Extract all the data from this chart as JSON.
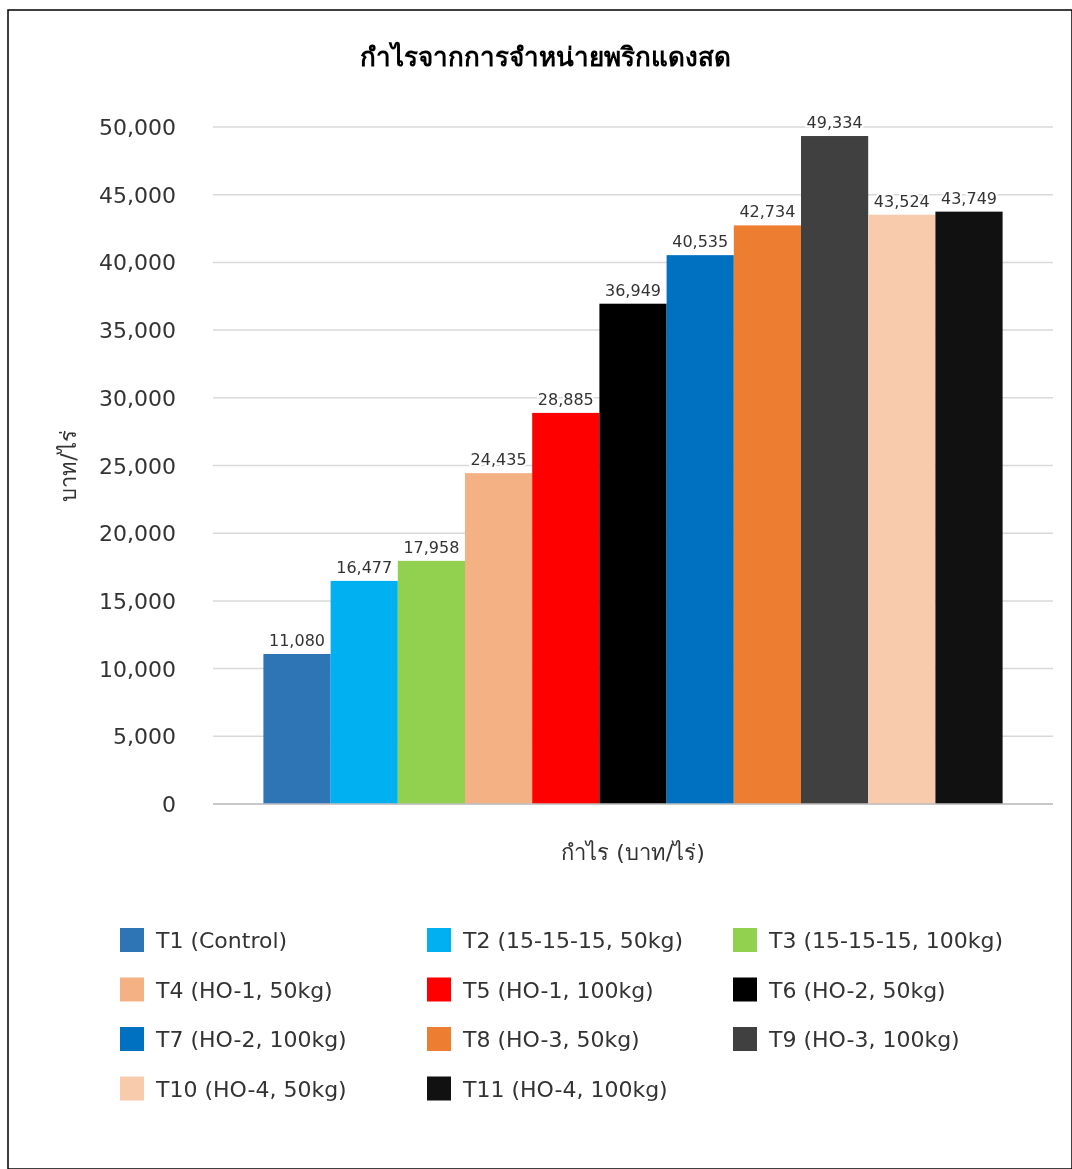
{
  "chart_data": {
    "type": "bar",
    "title": "กำไรจากการจำหน่ายพริกแดงสด",
    "ylabel": "บาท/ไร่",
    "categories": [
      "กำไร (บาท/ไร่)"
    ],
    "series": [
      {
        "name": "T1 (Control)",
        "color": "#2e75b6",
        "values": [
          11080
        ],
        "value_labels": [
          "11,080"
        ]
      },
      {
        "name": "T2 (15-15-15, 50kg)",
        "color": "#00b0f0",
        "values": [
          16477
        ],
        "value_labels": [
          "16,477"
        ]
      },
      {
        "name": "T3 (15-15-15, 100kg)",
        "color": "#92d050",
        "values": [
          17958
        ],
        "value_labels": [
          "17,958"
        ]
      },
      {
        "name": "T4 (HO-1, 50kg)",
        "color": "#f4b183",
        "values": [
          24435
        ],
        "value_labels": [
          "24,435"
        ]
      },
      {
        "name": "T5 (HO-1, 100kg)",
        "color": "#ff0000",
        "values": [
          28885
        ],
        "value_labels": [
          "28,885"
        ]
      },
      {
        "name": "T6 (HO-2, 50kg)",
        "color": "#000000",
        "values": [
          36949
        ],
        "value_labels": [
          "36,949"
        ]
      },
      {
        "name": "T7 (HO-2, 100kg)",
        "color": "#0070c0",
        "values": [
          40535
        ],
        "value_labels": [
          "40,535"
        ]
      },
      {
        "name": "T8 (HO-3, 50kg)",
        "color": "#ed7d31",
        "values": [
          42734
        ],
        "value_labels": [
          "42,734"
        ]
      },
      {
        "name": "T9 (HO-3, 100kg)",
        "color": "#404040",
        "values": [
          49334
        ],
        "value_labels": [
          "49,334"
        ]
      },
      {
        "name": "T10 (HO-4, 50kg)",
        "color": "#f8cbad",
        "values": [
          43524
        ],
        "value_labels": [
          "43,524"
        ]
      },
      {
        "name": "T11 (HO-4, 100kg)",
        "color": "#111111",
        "values": [
          43749
        ],
        "value_labels": [
          "43,749"
        ]
      }
    ],
    "ylim": [
      0,
      50000
    ],
    "yticks": [
      {
        "value": 0,
        "label": "0"
      },
      {
        "value": 5000,
        "label": "5,000"
      },
      {
        "value": 10000,
        "label": "10,000"
      },
      {
        "value": 15000,
        "label": "15,000"
      },
      {
        "value": 20000,
        "label": "20,000"
      },
      {
        "value": 25000,
        "label": "25,000"
      },
      {
        "value": 30000,
        "label": "30,000"
      },
      {
        "value": 35000,
        "label": "35,000"
      },
      {
        "value": 40000,
        "label": "40,000"
      },
      {
        "value": 45000,
        "label": "45,000"
      },
      {
        "value": 50000,
        "label": "50,000"
      }
    ],
    "grid": "y",
    "legend": "bottom"
  }
}
